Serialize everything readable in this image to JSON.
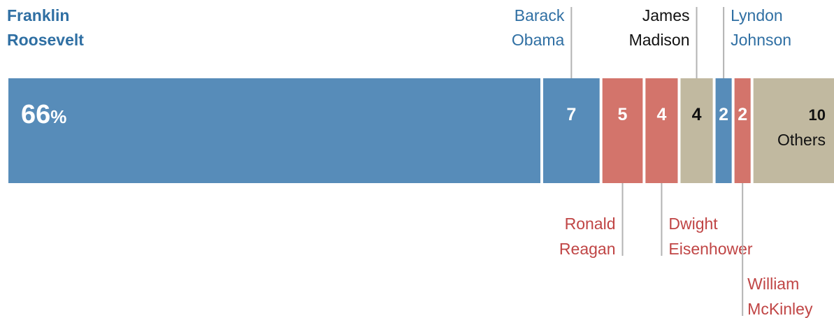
{
  "chart_data": {
    "type": "bar",
    "orientation": "stacked-horizontal",
    "unit": "%",
    "colors": {
      "democrat": "#578cb9",
      "republican": "#d3746b",
      "other": "#c1b9a0",
      "democrat_text": "#2f6fa3",
      "republican_text": "#c04545",
      "other_text": "#111111"
    },
    "segments": [
      {
        "value": 66,
        "value_label": "66",
        "suffix": "%",
        "party": "democrat",
        "name_lines": [
          "Franklin",
          "Roosevelt"
        ]
      },
      {
        "value": 7,
        "value_label": "7",
        "suffix": "",
        "party": "democrat",
        "name_lines": [
          "Barack",
          "Obama"
        ]
      },
      {
        "value": 5,
        "value_label": "5",
        "suffix": "",
        "party": "republican",
        "name_lines": [
          "Ronald",
          "Reagan"
        ]
      },
      {
        "value": 4,
        "value_label": "4",
        "suffix": "",
        "party": "republican",
        "name_lines": [
          "Dwight",
          "Eisenhower"
        ]
      },
      {
        "value": 4,
        "value_label": "4",
        "suffix": "",
        "party": "other",
        "name_lines": [
          "James",
          "Madison"
        ]
      },
      {
        "value": 2,
        "value_label": "2",
        "suffix": "",
        "party": "democrat",
        "name_lines": [
          "Lyndon",
          "Johnson"
        ]
      },
      {
        "value": 2,
        "value_label": "2",
        "suffix": "",
        "party": "republican",
        "name_lines": [
          "William",
          "McKinley"
        ]
      },
      {
        "value": 10,
        "value_label": "10",
        "suffix": "",
        "party": "other",
        "name_lines": [
          "Others"
        ]
      }
    ]
  }
}
